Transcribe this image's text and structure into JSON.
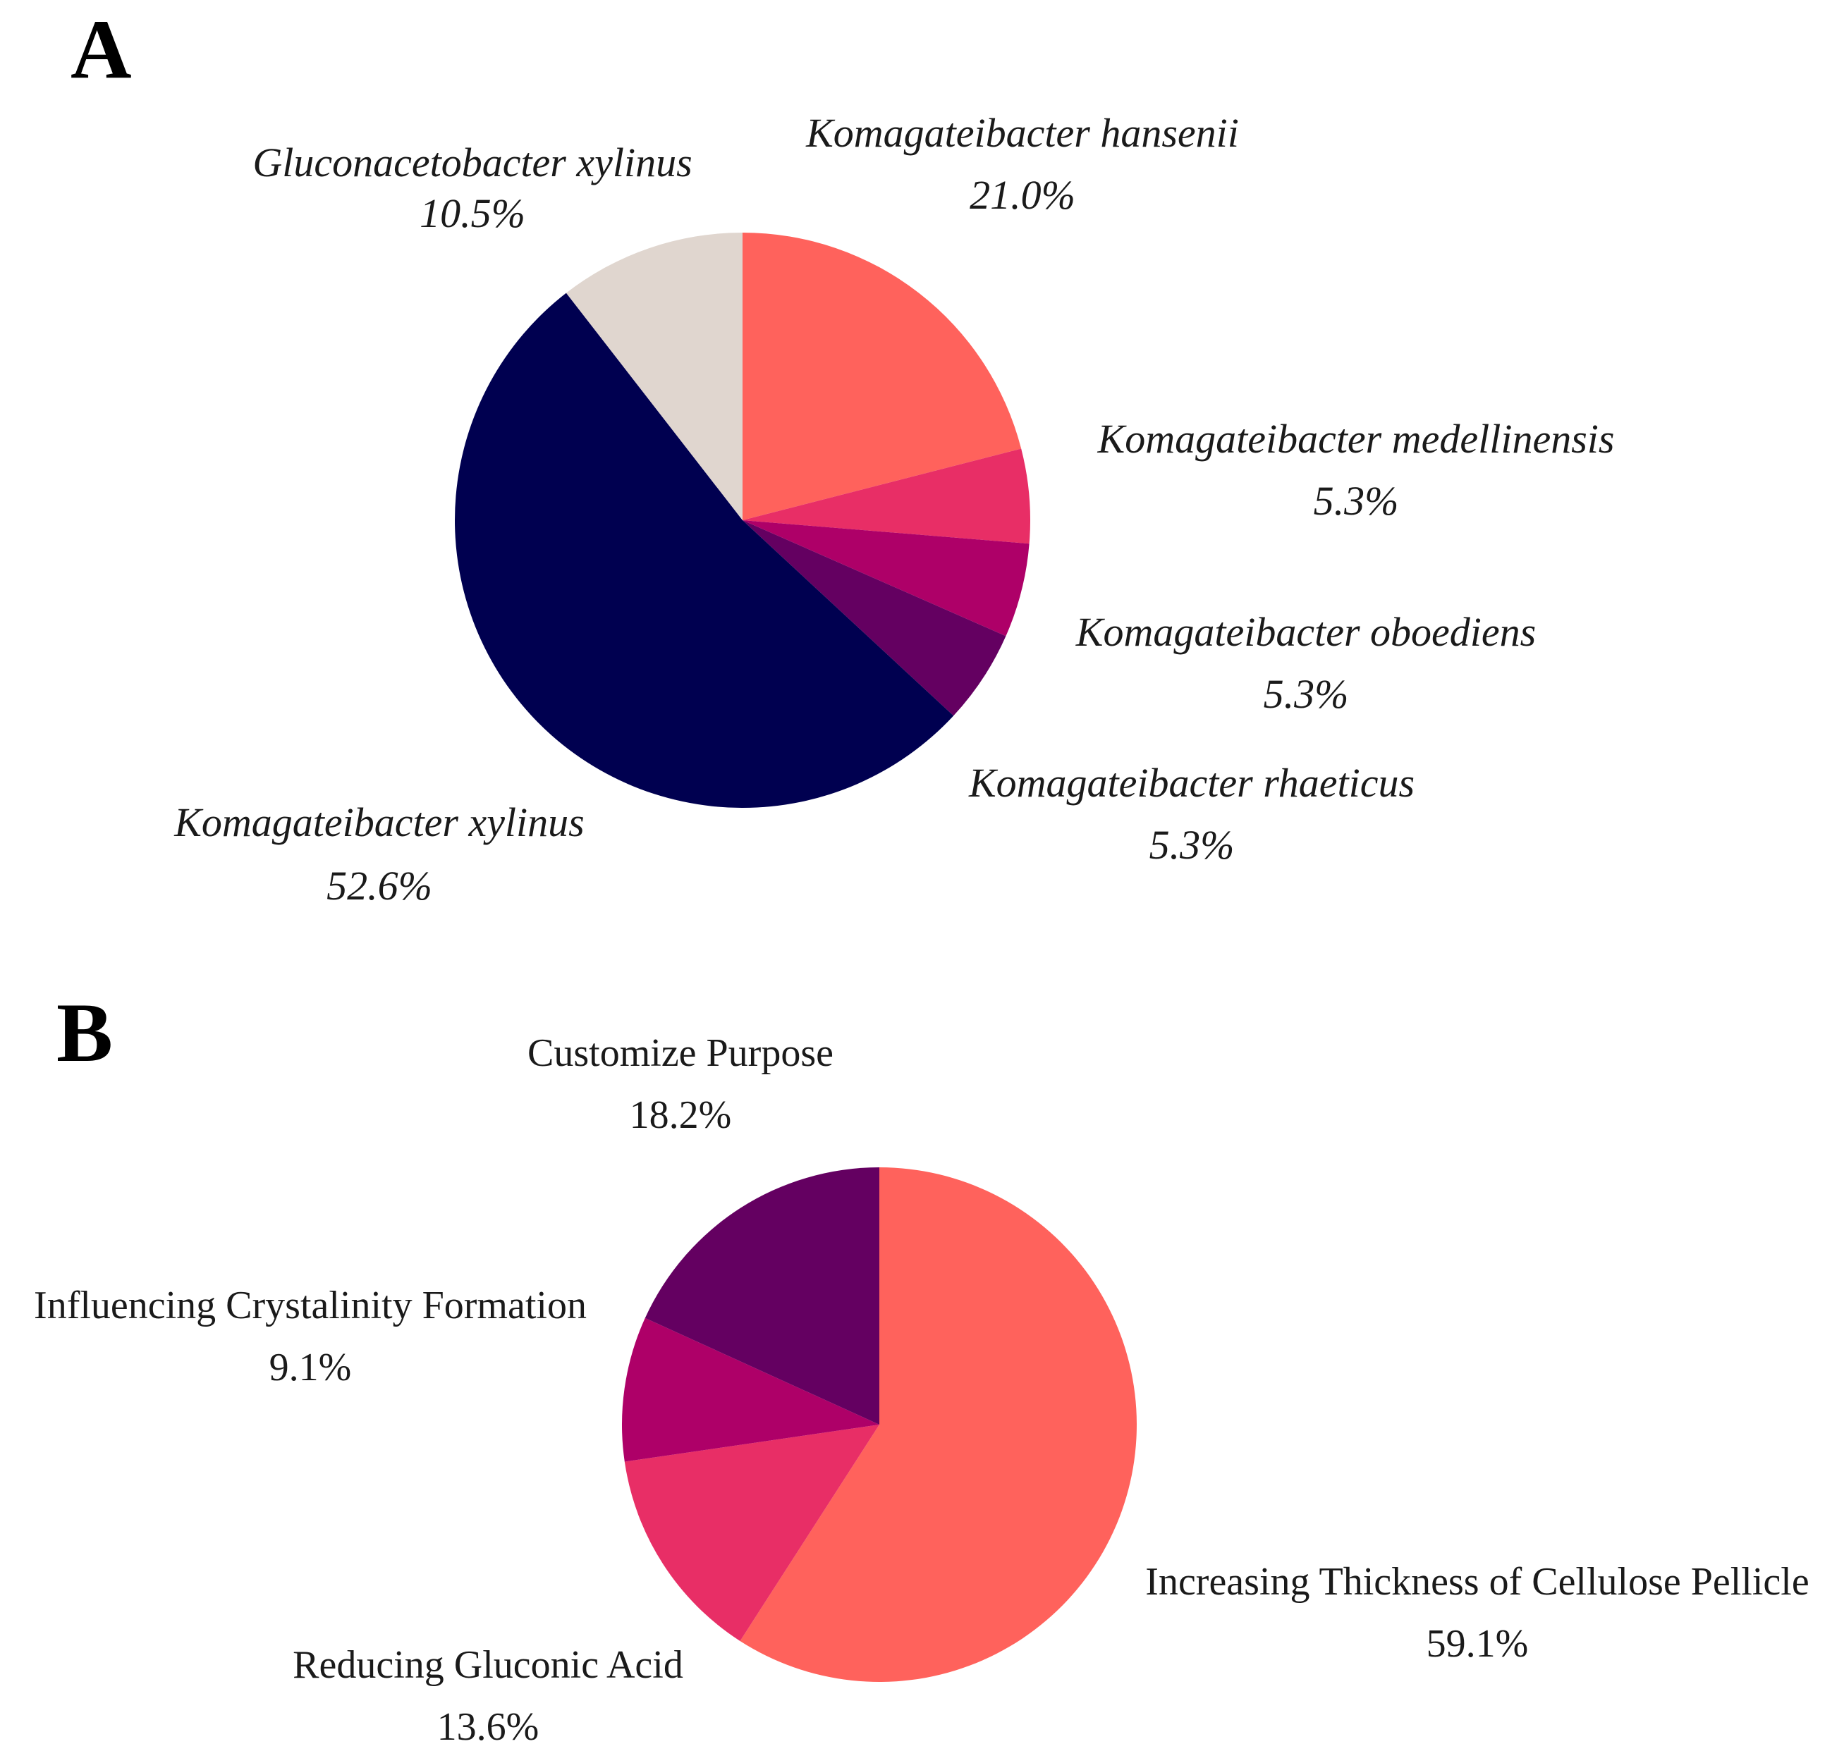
{
  "chart_data": [
    {
      "type": "pie",
      "panel": "A",
      "italic_labels": true,
      "slices": [
        {
          "label": "Komagateibacter hansenii",
          "value": 21.0,
          "pct_text": "21.0%",
          "color": "#ff625c"
        },
        {
          "label": "Komagateibacter medellinensis",
          "value": 5.3,
          "pct_text": "5.3%",
          "color": "#e82e66"
        },
        {
          "label": "Komagateibacter oboediens",
          "value": 5.3,
          "pct_text": "5.3%",
          "color": "#ae0068"
        },
        {
          "label": "Komagateibacter rhaeticus",
          "value": 5.3,
          "pct_text": "5.3%",
          "color": "#640061"
        },
        {
          "label": "Komagateibacter xylinus",
          "value": 52.6,
          "pct_text": "52.6%",
          "color": "#000050"
        },
        {
          "label": "Gluconacetobacter xylinus",
          "value": 10.5,
          "pct_text": "10.5%",
          "color": "#e0d6cf"
        }
      ]
    },
    {
      "type": "pie",
      "panel": "B",
      "italic_labels": false,
      "slices": [
        {
          "label": "Increasing Thickness of Cellulose Pellicle",
          "value": 59.1,
          "pct_text": "59.1%",
          "color": "#ff625c"
        },
        {
          "label": "Reducing Gluconic Acid",
          "value": 13.6,
          "pct_text": "13.6%",
          "color": "#e82e66"
        },
        {
          "label": "Influencing Crystalinity Formation",
          "value": 9.1,
          "pct_text": "9.1%",
          "color": "#ae0068"
        },
        {
          "label": "Customize Purpose",
          "value": 18.2,
          "pct_text": "18.2%",
          "color": "#640061"
        }
      ]
    }
  ]
}
